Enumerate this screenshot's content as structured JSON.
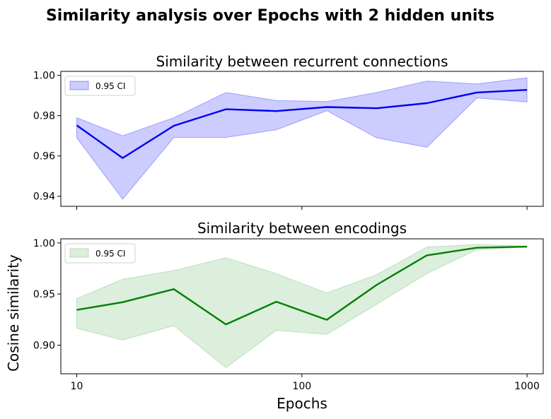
{
  "figure": {
    "suptitle": "Similarity analysis over Epochs with 2 hidden units",
    "xlabel": "Epochs",
    "ylabel": "Cosine similarity"
  },
  "chart_data": [
    {
      "type": "line",
      "title": "Similarity between recurrent connections",
      "xscale": "log",
      "xlim": [
        8.5,
        1180
      ],
      "ylim": [
        0.935,
        1.002
      ],
      "xticks": [
        10,
        100,
        1000
      ],
      "xtick_labels": [
        "",
        "",
        ""
      ],
      "yticks": [
        0.94,
        0.96,
        0.98,
        1.0
      ],
      "ytick_labels": [
        "0.94",
        "0.96",
        "0.98",
        "1.00"
      ],
      "legend": {
        "label": "0.95 CI",
        "position": "top-left"
      },
      "color": "#0000ee",
      "fill_color": "#0000ff",
      "x": [
        10,
        16,
        27,
        46,
        77,
        129,
        215,
        359,
        599,
        1000
      ],
      "series": [
        {
          "values": [
            0.9752,
            0.959,
            0.975,
            0.9832,
            0.9823,
            0.9843,
            0.9837,
            0.9862,
            0.9915,
            0.9928
          ]
        }
      ],
      "ci_lower": [
        0.969,
        0.9385,
        0.9692,
        0.9692,
        0.973,
        0.9825,
        0.969,
        0.9643,
        0.9888,
        0.9868
      ],
      "ci_upper": [
        0.979,
        0.97,
        0.979,
        0.9915,
        0.9875,
        0.987,
        0.9915,
        0.9972,
        0.9958,
        0.9988
      ]
    },
    {
      "type": "line",
      "title": "Similarity between encodings",
      "xscale": "log",
      "xlim": [
        8.5,
        1180
      ],
      "ylim": [
        0.872,
        1.004
      ],
      "xticks": [
        10,
        100,
        1000
      ],
      "xtick_labels": [
        "10",
        "100",
        "1000"
      ],
      "yticks": [
        0.9,
        0.95,
        1.0
      ],
      "ytick_labels": [
        "0.90",
        "0.95",
        "1.00"
      ],
      "legend": {
        "label": "0.95 CI",
        "position": "top-left"
      },
      "color": "#008000",
      "fill_color": "#4caf50",
      "x": [
        10,
        16,
        27,
        46,
        77,
        129,
        215,
        359,
        599,
        1000
      ],
      "series": [
        {
          "values": [
            0.9345,
            0.942,
            0.9548,
            0.9203,
            0.9425,
            0.9248,
            0.959,
            0.9878,
            0.9953,
            0.9963
          ]
        }
      ],
      "ci_lower": [
        0.9165,
        0.905,
        0.919,
        0.878,
        0.9145,
        0.9105,
        0.94,
        0.97,
        0.9935,
        0.996
      ],
      "ci_upper": [
        0.9455,
        0.9645,
        0.973,
        0.9855,
        0.97,
        0.951,
        0.969,
        0.996,
        0.9985,
        0.9968
      ]
    }
  ]
}
